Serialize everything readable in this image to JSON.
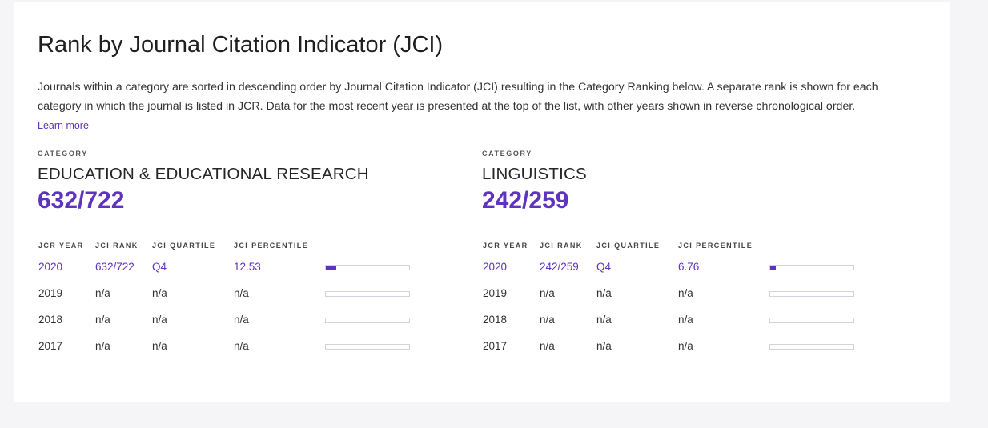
{
  "title": "Rank by Journal Citation Indicator (JCI)",
  "description": "Journals within a category are sorted in descending order by Journal Citation Indicator (JCI) resulting in the Category Ranking below. A separate rank is shown for each category in which the journal is listed in JCR. Data for the most recent year is presented at the top of the list, with other years shown in reverse chronological order.",
  "learn_more_label": "Learn more",
  "accent_color": "#5e33bf",
  "columns": {
    "year": "JCR YEAR",
    "rank": "JCI RANK",
    "quartile": "JCI QUARTILE",
    "percentile": "JCI PERCENTILE"
  },
  "categories": [
    {
      "label": "CATEGORY",
      "name": "EDUCATION & EDUCATIONAL RESEARCH",
      "rank": "632/722",
      "rows": [
        {
          "year": "2020",
          "rank": "632/722",
          "quartile": "Q4",
          "percentile": "12.53",
          "percentile_fill": 12.53
        },
        {
          "year": "2019",
          "rank": "n/a",
          "quartile": "n/a",
          "percentile": "n/a",
          "percentile_fill": 0
        },
        {
          "year": "2018",
          "rank": "n/a",
          "quartile": "n/a",
          "percentile": "n/a",
          "percentile_fill": 0
        },
        {
          "year": "2017",
          "rank": "n/a",
          "quartile": "n/a",
          "percentile": "n/a",
          "percentile_fill": 0
        }
      ]
    },
    {
      "label": "CATEGORY",
      "name": "LINGUISTICS",
      "rank": "242/259",
      "rows": [
        {
          "year": "2020",
          "rank": "242/259",
          "quartile": "Q4",
          "percentile": "6.76",
          "percentile_fill": 6.76
        },
        {
          "year": "2019",
          "rank": "n/a",
          "quartile": "n/a",
          "percentile": "n/a",
          "percentile_fill": 0
        },
        {
          "year": "2018",
          "rank": "n/a",
          "quartile": "n/a",
          "percentile": "n/a",
          "percentile_fill": 0
        },
        {
          "year": "2017",
          "rank": "n/a",
          "quartile": "n/a",
          "percentile": "n/a",
          "percentile_fill": 0
        }
      ]
    }
  ]
}
